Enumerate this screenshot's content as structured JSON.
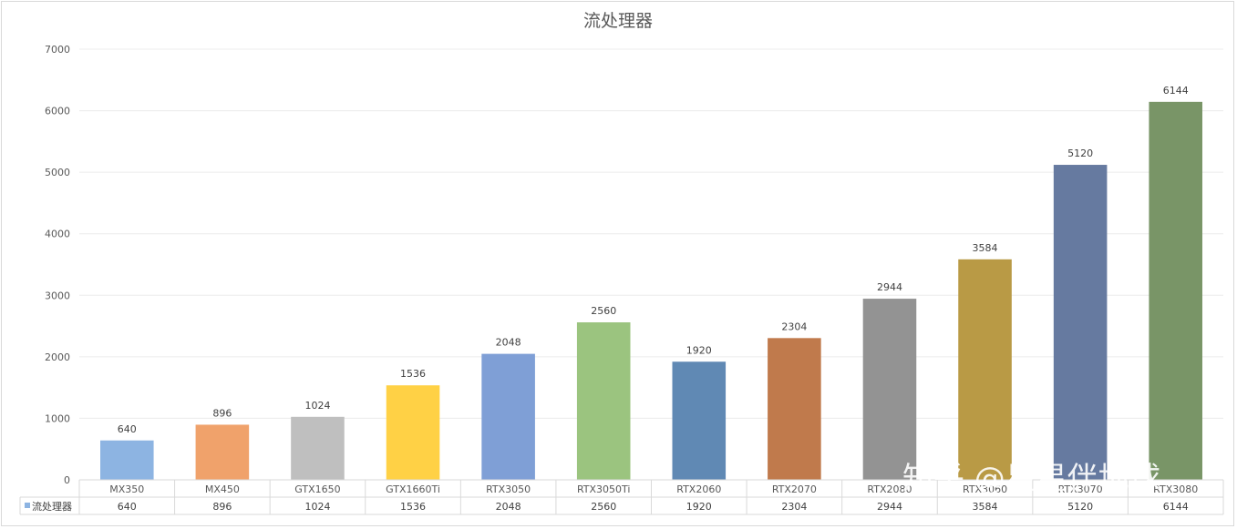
{
  "chart_data": {
    "type": "bar",
    "title": "流处理器",
    "categories": [
      "MX350",
      "MX450",
      "GTX1650",
      "GTX1660Ti",
      "RTX3050",
      "RTX3050Ti",
      "RTX2060",
      "RTX2070",
      "RTX2080",
      "RTX3060",
      "RTX3070",
      "RTX3080"
    ],
    "series": [
      {
        "name": "流处理器",
        "values": [
          640,
          896,
          1024,
          1536,
          2048,
          2560,
          1920,
          2304,
          2944,
          3584,
          5120,
          6144
        ]
      }
    ],
    "bar_colors": [
      "#8db4e2",
      "#f0a26b",
      "#bfbfbf",
      "#ffd145",
      "#7f9fd6",
      "#9bc47f",
      "#6089b4",
      "#c07a4c",
      "#939393",
      "#b99a45",
      "#667aa0",
      "#799567"
    ],
    "legend_marker_color": "#8db4e2",
    "ylim": [
      0,
      7000
    ],
    "yticks": [
      0,
      1000,
      2000,
      3000,
      4000,
      5000,
      6000,
      7000
    ],
    "gridlines": true,
    "data_labels": true,
    "data_table": true,
    "xlabel": "",
    "ylabel": ""
  },
  "watermark": "知乎 @星星伴地球"
}
